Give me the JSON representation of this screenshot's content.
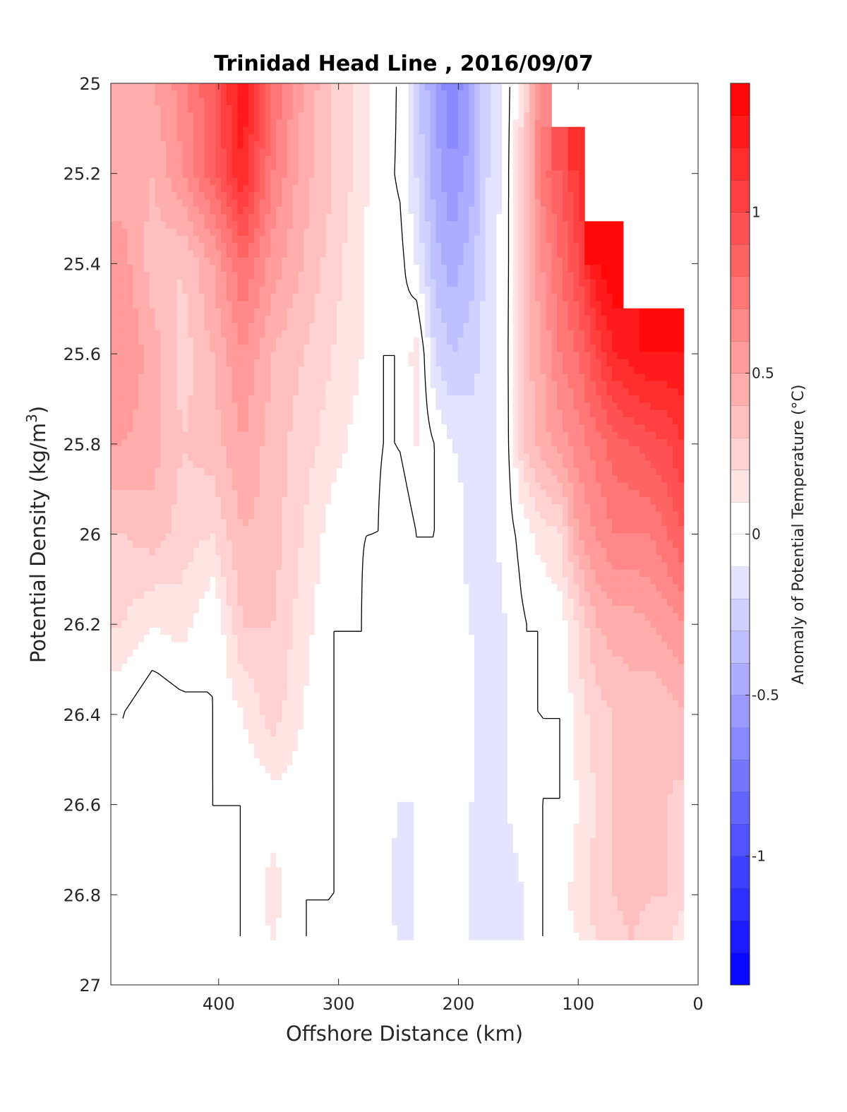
{
  "chart_data": {
    "type": "heatmap",
    "subtype": "filled-contour",
    "title": "Trinidad Head Line , 2016/09/07",
    "xlabel": "Offshore Distance (km)",
    "ylabel": "Potential Density (kg/m³)",
    "ylabel_main": "Potential Density (kg/m",
    "ylabel_sup": "3",
    "ylabel_end": ")",
    "xlim": [
      490,
      0
    ],
    "x_reversed": true,
    "ylim": [
      25,
      27
    ],
    "y_reversed": true,
    "xticks": [
      400,
      300,
      200,
      100,
      0
    ],
    "yticks": [
      25,
      25.2,
      25.4,
      25.6,
      25.8,
      26,
      26.2,
      26.4,
      26.6,
      26.8,
      27
    ],
    "colorbar": {
      "label": "Anomaly of Potential Temperature (°C)",
      "range": [
        -1.4,
        1.4
      ],
      "ticks": [
        1,
        0.5,
        0,
        -0.5,
        -1
      ],
      "levels": 28,
      "colormap": "blue-white-red",
      "neg_color": "#0000ff",
      "pos_color": "#ff0000",
      "zero_color": "#ffffff"
    },
    "zero_contour_color": "#000000",
    "grid": false,
    "data_columns_km": [
      480,
      455,
      430,
      405,
      380,
      355,
      330,
      305,
      280,
      265,
      250,
      235,
      220,
      205,
      190,
      175,
      160,
      145,
      130,
      115,
      100,
      85,
      70,
      55,
      40,
      25,
      12
    ],
    "data_rows_density": [
      25.0,
      25.2,
      25.4,
      25.6,
      25.8,
      26.0,
      26.2,
      26.4,
      26.6,
      26.8,
      26.9
    ],
    "field": [
      [
        0.4,
        0.5,
        0.65,
        0.9,
        1.3,
        0.8,
        0.5,
        0.3,
        0.15,
        0.05,
        0.0,
        -0.25,
        -0.5,
        -0.7,
        -0.5,
        -0.2,
        -0.05,
        0.2,
        0.7,
        null,
        null,
        null,
        null,
        null,
        null,
        null,
        null
      ],
      [
        0.45,
        0.4,
        0.6,
        0.85,
        1.2,
        0.7,
        0.45,
        0.3,
        0.15,
        0.0,
        0.0,
        -0.2,
        -0.45,
        -0.6,
        -0.45,
        -0.2,
        -0.05,
        0.3,
        0.75,
        0.9,
        1.1,
        null,
        null,
        null,
        null,
        null,
        null
      ],
      [
        0.55,
        0.35,
        0.3,
        0.5,
        0.8,
        0.55,
        0.4,
        0.25,
        0.1,
        0.0,
        0.05,
        -0.1,
        -0.35,
        -0.45,
        -0.35,
        -0.15,
        -0.05,
        0.3,
        0.6,
        0.8,
        1.0,
        1.3,
        1.4,
        null,
        null,
        null,
        null
      ],
      [
        0.6,
        0.45,
        0.25,
        0.4,
        0.6,
        0.4,
        0.3,
        0.2,
        0.1,
        0.0,
        0.0,
        0.15,
        -0.2,
        -0.3,
        -0.25,
        -0.15,
        -0.05,
        0.35,
        0.5,
        0.7,
        0.8,
        1.0,
        1.2,
        1.25,
        1.3,
        1.3,
        1.3
      ],
      [
        0.5,
        0.45,
        0.3,
        0.35,
        0.5,
        0.35,
        0.25,
        0.15,
        0.05,
        0.0,
        0.0,
        0.1,
        0.0,
        -0.1,
        -0.15,
        -0.15,
        -0.05,
        0.3,
        0.45,
        0.55,
        0.65,
        0.75,
        0.85,
        0.9,
        0.95,
        1.0,
        1.1
      ],
      [
        0.3,
        0.35,
        0.25,
        0.2,
        0.4,
        0.35,
        0.2,
        0.05,
        0.0,
        0.0,
        -0.1,
        0.0,
        0.0,
        0.0,
        -0.15,
        -0.15,
        -0.05,
        0.05,
        0.15,
        0.2,
        0.5,
        0.6,
        0.7,
        0.7,
        0.7,
        0.8,
        0.9
      ],
      [
        0.2,
        0.1,
        0.15,
        0.0,
        0.3,
        0.3,
        0.15,
        0.0,
        0.0,
        -0.05,
        0.0,
        0.0,
        0.0,
        -0.05,
        -0.1,
        -0.15,
        -0.1,
        0.0,
        0.0,
        0.05,
        0.2,
        0.4,
        0.45,
        0.45,
        0.5,
        0.55,
        0.6
      ],
      [
        0.0,
        -0.1,
        -0.05,
        0.0,
        0.1,
        0.25,
        0.1,
        0.0,
        0.0,
        -0.05,
        -0.05,
        0.0,
        -0.05,
        0.0,
        -0.05,
        -0.2,
        -0.1,
        0.0,
        0.0,
        0.0,
        0.15,
        0.25,
        0.3,
        0.35,
        0.3,
        0.35,
        0.4
      ],
      [
        0.0,
        0.0,
        -0.05,
        0.0,
        0.0,
        0.05,
        0.05,
        0.0,
        0.0,
        -0.05,
        -0.1,
        -0.1,
        -0.1,
        -0.05,
        -0.1,
        -0.1,
        -0.1,
        0.0,
        0.0,
        0.0,
        0.1,
        0.2,
        0.3,
        0.3,
        0.3,
        0.3,
        0.25
      ],
      [
        -0.1,
        0.0,
        0.0,
        0.0,
        0.0,
        0.15,
        0.0,
        0.0,
        0.0,
        0.0,
        -0.15,
        -0.1,
        -0.05,
        0.0,
        -0.1,
        -0.2,
        -0.2,
        -0.1,
        0.0,
        0.05,
        0.15,
        0.25,
        0.3,
        0.35,
        0.3,
        0.3,
        0.2
      ],
      [
        0.0,
        0.0,
        0.0,
        0.0,
        0.0,
        0.1,
        0.0,
        0.0,
        0.0,
        -0.05,
        -0.1,
        -0.1,
        -0.05,
        -0.05,
        -0.1,
        -0.15,
        -0.2,
        -0.1,
        0.0,
        0.05,
        0.1,
        0.2,
        0.25,
        0.3,
        0.25,
        0.2,
        0.15
      ]
    ]
  }
}
